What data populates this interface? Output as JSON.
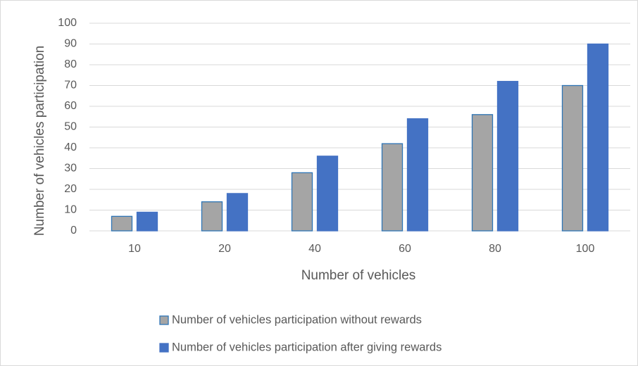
{
  "chart_data": {
    "type": "bar",
    "x_label": "Number of vehicles",
    "y_label": "Number of vehicles participation",
    "categories": [
      "10",
      "20",
      "40",
      "60",
      "80",
      "100"
    ],
    "series": [
      {
        "name": "Number of vehicles participation without rewards",
        "color": "#a5a5a5",
        "edgecolor": "#2e75b6",
        "values": [
          7,
          14,
          28,
          42,
          56,
          70
        ]
      },
      {
        "name": "Number of vehicles participation after giving rewards",
        "color": "#4472c4",
        "edgecolor": "#4472c4",
        "values": [
          9,
          18,
          36,
          54,
          72,
          90
        ]
      }
    ],
    "ylim": [
      0,
      100
    ],
    "yticks": [
      0,
      10,
      20,
      30,
      40,
      50,
      60,
      70,
      80,
      90,
      100
    ],
    "grid": true,
    "legend": "bottom"
  }
}
